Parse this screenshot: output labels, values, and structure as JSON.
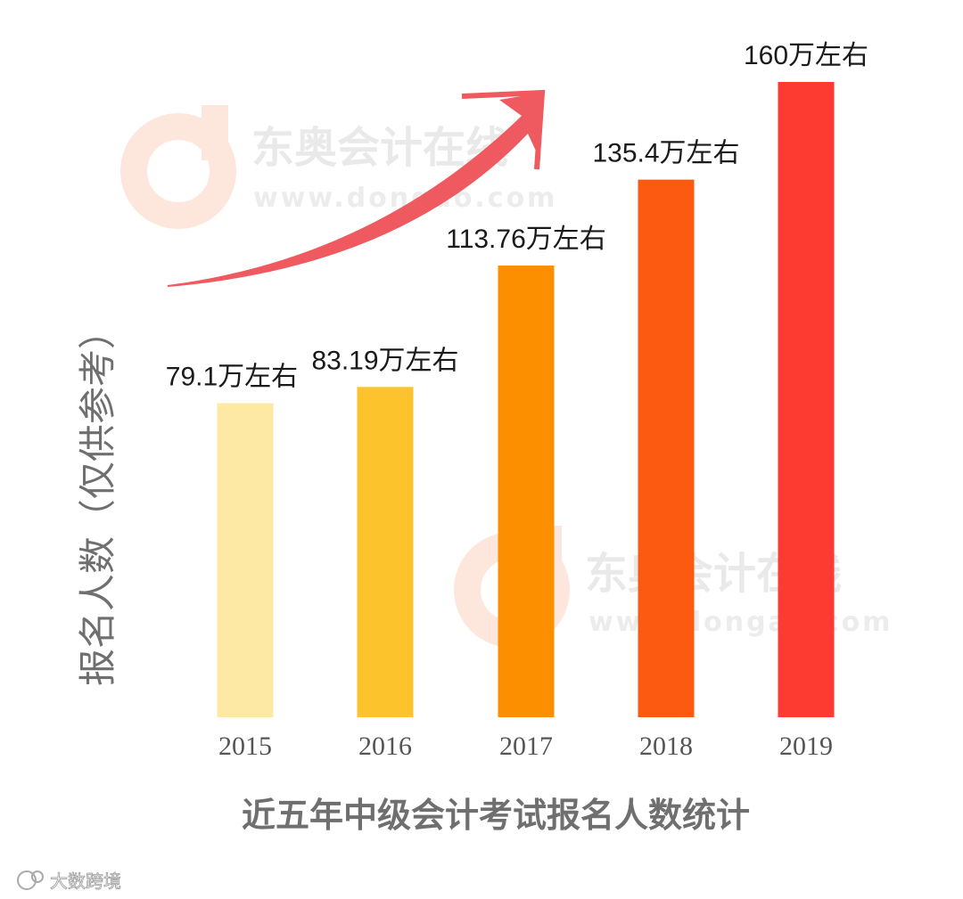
{
  "watermark": {
    "title": "东奥会计在线",
    "url": "www.dongao.com"
  },
  "corner_mark": "大数跨境",
  "colors": {
    "bar_2015": "#fde8a4",
    "bar_2016": "#fcc32c",
    "bar_2017": "#fb8f00",
    "bar_2018": "#fc5a10",
    "bar_2019": "#fd3b31",
    "arrow": "#ee5a5f"
  },
  "chart_data": {
    "type": "bar",
    "title": "近五年中级会计考试报名人数统计",
    "xlabel": "",
    "ylabel": "报名人数（仅供参考）",
    "categories": [
      "2015",
      "2016",
      "2017",
      "2018",
      "2019"
    ],
    "values": [
      79.1,
      83.19,
      113.76,
      135.4,
      160
    ],
    "data_labels": [
      "79.1万左右",
      "83.19万左右",
      "113.76万左右",
      "135.4万左右",
      "160万左右"
    ],
    "unit": "万",
    "ylim": [
      0,
      160
    ],
    "grid": false,
    "legend": "none"
  }
}
